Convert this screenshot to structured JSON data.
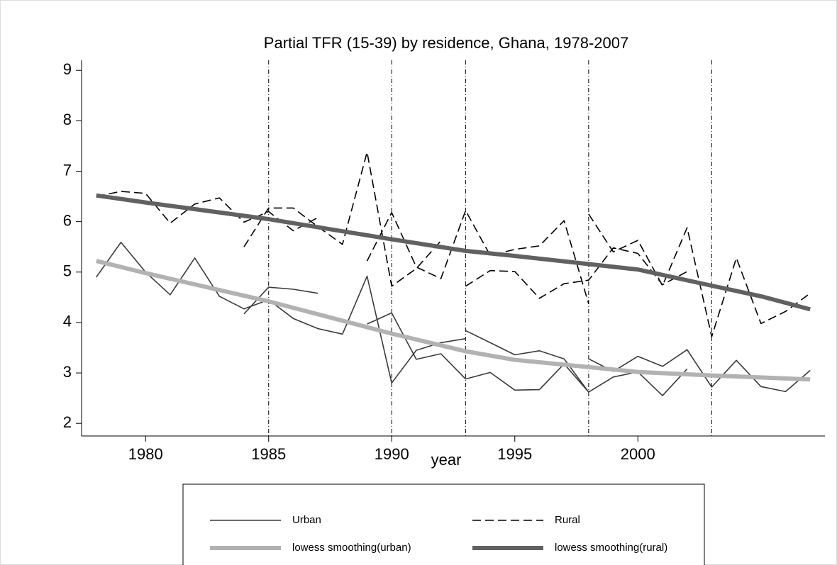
{
  "chart_data": {
    "type": "line",
    "title": "Partial TFR (15-39) by residence, Ghana, 1978-2007",
    "x_label": "year",
    "xlim": [
      1977.4,
      2007.6
    ],
    "xticks": [
      1980,
      1985,
      1990,
      1995,
      2000
    ],
    "ylim": [
      1.75,
      9.2
    ],
    "yticks": [
      2,
      3,
      4,
      5,
      6,
      7,
      8,
      9
    ],
    "vlines": [
      1985,
      1990,
      1993,
      1998,
      2003
    ],
    "series": [
      {
        "name": "Urban",
        "color": "#3a3a3a",
        "style": "solid",
        "x": [
          1978,
          1979,
          1980,
          1981,
          1982,
          1983,
          1984,
          1985,
          1986,
          1987,
          1988,
          1989,
          1990,
          1991,
          1992,
          1993,
          null,
          1984,
          1985,
          1986,
          1987,
          null,
          1989,
          1990,
          1991,
          1992,
          1993,
          1994,
          1995,
          1996,
          1997,
          1998,
          null,
          1993,
          1994,
          1995,
          1996,
          1997,
          1998,
          1999,
          2000,
          2001,
          2002,
          null,
          1998,
          1999,
          2000,
          2001,
          2002,
          2003,
          2004,
          2005,
          2006,
          2007
        ],
        "values": [
          4.9,
          5.59,
          5.0,
          4.55,
          5.28,
          4.52,
          4.27,
          4.45,
          4.08,
          3.88,
          3.77,
          4.92,
          2.8,
          3.45,
          3.6,
          3.68,
          null,
          4.17,
          4.7,
          4.66,
          4.58,
          null,
          3.97,
          4.19,
          3.27,
          3.38,
          2.88,
          3.01,
          2.66,
          2.67,
          3.18,
          2.62,
          null,
          3.84,
          3.6,
          3.36,
          3.44,
          3.28,
          2.62,
          2.92,
          3.02,
          2.55,
          3.08,
          null,
          3.28,
          3.03,
          3.33,
          3.13,
          3.46,
          2.72,
          3.25,
          2.73,
          2.63,
          3.05
        ]
      },
      {
        "name": "Rural",
        "color": "#000000",
        "style": "dashed",
        "x": [
          1978,
          1979,
          1980,
          1981,
          1982,
          1983,
          1984,
          1985,
          1986,
          1987,
          null,
          1984,
          1985,
          1986,
          1987,
          1988,
          1989,
          1990,
          1991,
          1992,
          null,
          1989,
          1990,
          1991,
          1992,
          1993,
          1994,
          1995,
          1996,
          1997,
          1998,
          null,
          1993,
          1994,
          1995,
          1996,
          1997,
          1998,
          1999,
          2000,
          2001,
          2002,
          null,
          1998,
          1999,
          2000,
          2001,
          2002,
          2003,
          2004,
          2005,
          2006,
          2007
        ],
        "values": [
          6.5,
          6.6,
          6.56,
          5.97,
          6.35,
          6.47,
          5.99,
          6.2,
          5.82,
          6.08,
          null,
          5.5,
          6.27,
          6.27,
          5.9,
          5.55,
          7.38,
          4.72,
          5.07,
          5.62,
          null,
          5.22,
          6.18,
          5.1,
          4.87,
          6.22,
          5.33,
          5.45,
          5.52,
          6.02,
          4.37,
          null,
          4.72,
          5.03,
          5.01,
          4.48,
          4.77,
          4.84,
          5.48,
          5.37,
          4.75,
          5.01,
          null,
          6.15,
          5.4,
          5.63,
          4.73,
          5.88,
          3.72,
          5.28,
          3.98,
          4.22,
          4.58
        ]
      },
      {
        "name": "lowess smoothing(urban)",
        "color": "#b2b2b2",
        "style": "thick",
        "x": [
          1978,
          1980,
          1985,
          1990,
          1993,
          1995,
          2000,
          2003,
          2007
        ],
        "values": [
          5.22,
          4.98,
          4.42,
          3.78,
          3.43,
          3.26,
          3.02,
          2.95,
          2.87
        ]
      },
      {
        "name": "lowess smoothing(rural)",
        "color": "#616161",
        "style": "thick",
        "x": [
          1978,
          1980,
          1985,
          1990,
          1993,
          1995,
          2000,
          2003,
          2005,
          2007
        ],
        "values": [
          6.52,
          6.38,
          6.05,
          5.65,
          5.42,
          5.32,
          5.05,
          4.73,
          4.52,
          4.26
        ]
      }
    ]
  }
}
